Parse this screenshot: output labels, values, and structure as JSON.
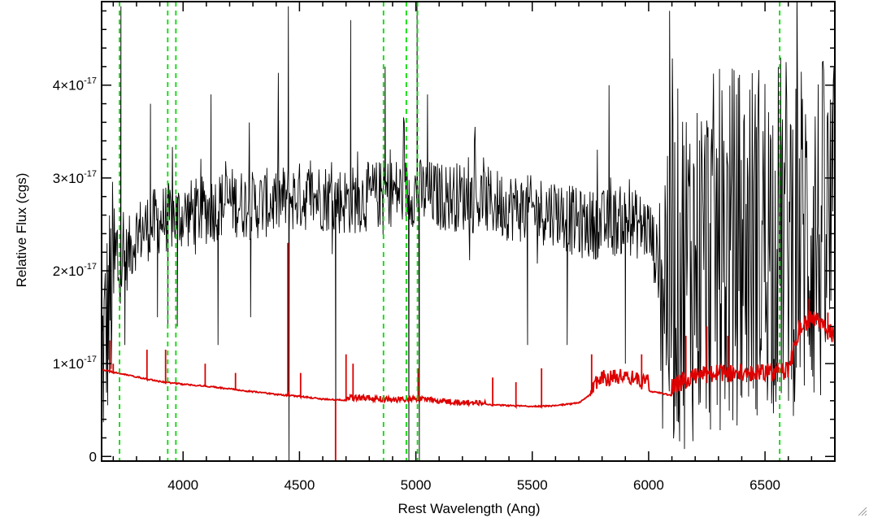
{
  "chart_data": {
    "type": "line",
    "title": "",
    "xlabel": "Rest Wavelength (Ang)",
    "ylabel": "Relative Flux (cgs)",
    "xlim": [
      3650,
      6800
    ],
    "ylim": [
      -0.05,
      4.9
    ],
    "y_scale_note": "values in units of 1e-17",
    "x_ticks": [
      {
        "value": 4000,
        "label": "4000"
      },
      {
        "value": 4500,
        "label": "4500"
      },
      {
        "value": 5000,
        "label": "5000"
      },
      {
        "value": 5500,
        "label": "5500"
      },
      {
        "value": 6000,
        "label": "6000"
      },
      {
        "value": 6500,
        "label": "6500"
      }
    ],
    "y_ticks": [
      {
        "value": 0,
        "mant": "0",
        "exp": ""
      },
      {
        "value": 1,
        "mant": "1×10",
        "exp": "-17"
      },
      {
        "value": 2,
        "mant": "2×10",
        "exp": "-17"
      },
      {
        "value": 3,
        "mant": "3×10",
        "exp": "-17"
      },
      {
        "value": 4,
        "mant": "4×10",
        "exp": "-17"
      }
    ],
    "x_minor_step": 100,
    "y_minor_step": 0.2,
    "vertical_lines": [
      3727,
      3934,
      3969,
      4861,
      4959,
      5007,
      6563
    ],
    "series": [
      {
        "color": "#000000",
        "envelope": [
          [
            3650,
            1.0
          ],
          [
            3700,
            1.9
          ],
          [
            3750,
            2.1
          ],
          [
            3800,
            2.4
          ],
          [
            3900,
            2.55
          ],
          [
            4000,
            2.6
          ],
          [
            4100,
            2.65
          ],
          [
            4200,
            2.75
          ],
          [
            4300,
            2.7
          ],
          [
            4400,
            2.75
          ],
          [
            4500,
            2.8
          ],
          [
            4600,
            2.8
          ],
          [
            4700,
            2.75
          ],
          [
            4800,
            2.8
          ],
          [
            4900,
            2.85
          ],
          [
            5000,
            2.85
          ],
          [
            5100,
            2.8
          ],
          [
            5200,
            2.8
          ],
          [
            5300,
            2.75
          ],
          [
            5400,
            2.7
          ],
          [
            5500,
            2.65
          ],
          [
            5600,
            2.65
          ],
          [
            5700,
            2.5
          ],
          [
            5800,
            2.5
          ],
          [
            5900,
            2.55
          ],
          [
            6000,
            2.45
          ],
          [
            6050,
            2.0
          ],
          [
            6100,
            2.0
          ],
          [
            6200,
            2.1
          ],
          [
            6300,
            2.2
          ],
          [
            6400,
            2.3
          ],
          [
            6500,
            2.4
          ],
          [
            6600,
            2.4
          ],
          [
            6700,
            2.4
          ],
          [
            6800,
            2.3
          ]
        ],
        "spikes": [
          [
            3733,
            4.85
          ],
          [
            3750,
            1.2
          ],
          [
            3860,
            3.8
          ],
          [
            3890,
            1.5
          ],
          [
            3935,
            1.4
          ],
          [
            3975,
            1.4
          ],
          [
            4120,
            3.9
          ],
          [
            4150,
            1.2
          ],
          [
            4290,
            1.5
          ],
          [
            4452,
            4.85
          ],
          [
            4455,
            -0.1
          ],
          [
            4656,
            -0.1
          ],
          [
            4720,
            4.7
          ],
          [
            4868,
            4.2
          ],
          [
            4970,
            -0.1
          ],
          [
            5005,
            4.9
          ],
          [
            5015,
            -0.1
          ],
          [
            5050,
            3.9
          ],
          [
            5480,
            1.2
          ],
          [
            5650,
            1.2
          ],
          [
            5830,
            4.0
          ],
          [
            5900,
            1.0
          ],
          [
            6060,
            0.3
          ],
          [
            6090,
            4.8
          ]
        ]
      },
      {
        "color": "#dd0000",
        "continuum": [
          [
            3650,
            0.93
          ],
          [
            3700,
            0.9
          ],
          [
            3800,
            0.85
          ],
          [
            3900,
            0.8
          ],
          [
            4000,
            0.77
          ],
          [
            4100,
            0.75
          ],
          [
            4200,
            0.72
          ],
          [
            4300,
            0.69
          ],
          [
            4400,
            0.66
          ],
          [
            4500,
            0.64
          ],
          [
            4600,
            0.61
          ],
          [
            4700,
            0.6
          ],
          [
            4800,
            0.6
          ],
          [
            4900,
            0.58
          ],
          [
            5000,
            0.6
          ],
          [
            5100,
            0.57
          ],
          [
            5200,
            0.55
          ],
          [
            5300,
            0.55
          ],
          [
            5400,
            0.54
          ],
          [
            5500,
            0.53
          ],
          [
            5600,
            0.54
          ],
          [
            5700,
            0.57
          ],
          [
            5800,
            0.75
          ],
          [
            5900,
            0.78
          ],
          [
            6000,
            0.7
          ],
          [
            6100,
            0.65
          ],
          [
            6200,
            0.78
          ],
          [
            6300,
            0.8
          ],
          [
            6400,
            0.8
          ],
          [
            6500,
            0.8
          ],
          [
            6600,
            0.82
          ],
          [
            6650,
            1.3
          ],
          [
            6700,
            1.4
          ],
          [
            6800,
            1.2
          ]
        ],
        "spikes": [
          [
            3685,
            1.25
          ],
          [
            3700,
            1.0
          ],
          [
            3845,
            1.15
          ],
          [
            3925,
            1.15
          ],
          [
            4095,
            1.0
          ],
          [
            4225,
            0.9
          ],
          [
            4450,
            2.3
          ],
          [
            4455,
            0.7
          ],
          [
            4505,
            0.9
          ],
          [
            4655,
            -0.05
          ],
          [
            4700,
            1.1
          ],
          [
            4730,
            1.0
          ],
          [
            5010,
            0.95
          ],
          [
            5330,
            0.85
          ],
          [
            5430,
            0.8
          ],
          [
            5540,
            0.95
          ],
          [
            5755,
            1.1
          ],
          [
            5970,
            1.1
          ],
          [
            6160,
            1.3
          ],
          [
            6250,
            1.4
          ],
          [
            6340,
            1.3
          ],
          [
            6690,
            1.7
          ],
          [
            6770,
            1.55
          ]
        ]
      }
    ]
  }
}
